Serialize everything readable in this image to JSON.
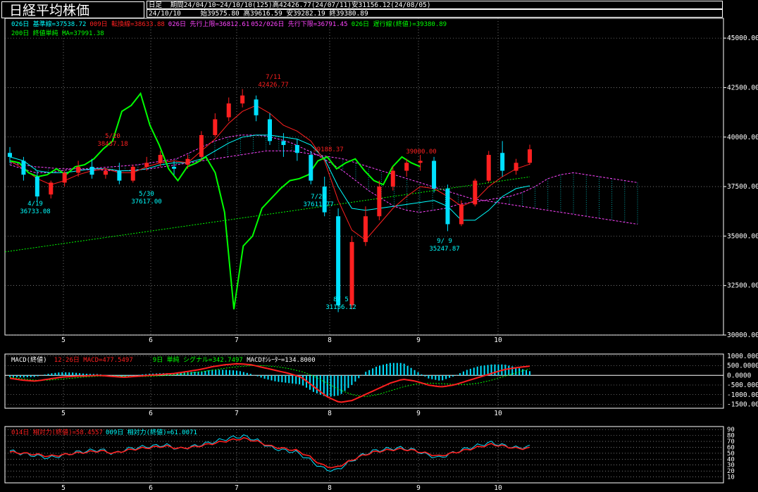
{
  "header": {
    "title": "日経平均株価",
    "chart_type_label": "日足",
    "period_line": "期間24/04/10~24/10/10(125)高42426.77(24/07/11)安31156.12(24/08/05)",
    "date": "24/10/10",
    "ohlc_line": "始39575.80 高39616.59 安39282.19 終39380.89"
  },
  "legends": {
    "ichimoku_1": [
      {
        "text": "026日 基準線=37538.72",
        "color": "#00ffff"
      },
      {
        "text": "009日 転換線=38633.88",
        "color": "#ff2020"
      },
      {
        "text": "026日 先行上限=36812.61",
        "color": "#ff44ff"
      },
      {
        "text": "052/026日 先行下限=36791.45",
        "color": "#ff44ff"
      },
      {
        "text": "026日 遅行線(終値)=39380.89",
        "color": "#00ff00"
      }
    ],
    "ichimoku_2": [
      {
        "text": "200日 終値単純 MA=37991.38",
        "color": "#00ff00"
      }
    ],
    "macd": [
      {
        "text": "MACD(終値)",
        "color": "#ffffff"
      },
      {
        "text": "12-26日 MACD=477.5497",
        "color": "#ff2020"
      },
      {
        "text": "9日 単純 シグナル=342.7497",
        "color": "#00ff00"
      },
      {
        "text": "MACDｵｼﾚｰﾀｰ=134.8000",
        "color": "#ffffff"
      }
    ],
    "rsi": [
      {
        "text": "014日 相対力(終値)=58.4557",
        "color": "#ff2020"
      },
      {
        "text": "009日 相対力(終値)=61.0071",
        "color": "#00ffff"
      }
    ]
  },
  "annotations": [
    {
      "lines": [
        "4/19",
        "36733.08"
      ],
      "color": "#00ffff"
    },
    {
      "lines": [
        "5/20",
        "38437.18"
      ],
      "color": "#ff2020"
    },
    {
      "lines": [
        "5/30",
        "37617.00"
      ],
      "color": "#00ffff"
    },
    {
      "lines": [
        "7/11",
        "42426.77"
      ],
      "color": "#ff2020"
    },
    {
      "lines": [
        "39188.37"
      ],
      "color": "#ff2020"
    },
    {
      "lines": [
        "7/26",
        "37611.77"
      ],
      "color": "#00ffff"
    },
    {
      "lines": [
        "8/ 5",
        "31156.12"
      ],
      "color": "#00ffff"
    },
    {
      "lines": [
        "39000.00"
      ],
      "color": "#ff2020"
    },
    {
      "lines": [
        "9/ 9",
        "35247.87"
      ],
      "color": "#00ffff"
    }
  ],
  "chart_data": [
    {
      "type": "candlestick",
      "panel": "price",
      "ylim": [
        30000,
        46000
      ],
      "yticks": [
        "45000.00",
        "42500.00",
        "40000.00",
        "37500.00",
        "35000.00",
        "32500.00",
        "30000.00"
      ],
      "xticks": [
        "5",
        "6",
        "7",
        "8",
        "9",
        "10"
      ],
      "ohlc_sampled": [
        [
          39200,
          39500,
          38700,
          39000
        ],
        [
          38800,
          39000,
          37800,
          38100
        ],
        [
          38000,
          38300,
          36733,
          37000
        ],
        [
          37100,
          37800,
          36900,
          37700
        ],
        [
          37700,
          38300,
          37500,
          38200
        ],
        [
          38200,
          38800,
          38000,
          38500
        ],
        [
          38500,
          38900,
          37900,
          38100
        ],
        [
          38100,
          38437,
          37900,
          38300
        ],
        [
          38300,
          38700,
          37617,
          37800
        ],
        [
          37800,
          38600,
          37700,
          38500
        ],
        [
          38500,
          39000,
          38300,
          38700
        ],
        [
          38700,
          39300,
          38500,
          39100
        ],
        [
          38500,
          38800,
          38100,
          38400
        ],
        [
          38600,
          39100,
          38400,
          38900
        ],
        [
          39000,
          40300,
          38800,
          40100
        ],
        [
          40100,
          41200,
          40000,
          40900
        ],
        [
          41000,
          42000,
          40800,
          41700
        ],
        [
          41700,
          42426,
          41500,
          42100
        ],
        [
          41900,
          42100,
          40800,
          41100
        ],
        [
          40900,
          41200,
          39600,
          39800
        ],
        [
          39800,
          40200,
          39000,
          39600
        ],
        [
          39600,
          39900,
          38800,
          39200
        ],
        [
          39100,
          39300,
          37611,
          37800
        ],
        [
          37500,
          38000,
          36000,
          36200
        ],
        [
          36000,
          36400,
          31156,
          31500
        ],
        [
          31500,
          35000,
          31300,
          34700
        ],
        [
          34700,
          36500,
          34500,
          36000
        ],
        [
          36000,
          37800,
          35800,
          37500
        ],
        [
          37500,
          38500,
          37300,
          38300
        ],
        [
          38300,
          38900,
          38000,
          38700
        ],
        [
          38700,
          39100,
          38300,
          38800
        ],
        [
          38800,
          39000,
          37200,
          37400
        ],
        [
          37400,
          37600,
          35247,
          35600
        ],
        [
          35600,
          36800,
          35500,
          36600
        ],
        [
          36600,
          37900,
          36500,
          37800
        ],
        [
          37800,
          39300,
          37700,
          39100
        ],
        [
          39200,
          39800,
          38000,
          38300
        ],
        [
          38300,
          38900,
          38100,
          38700
        ],
        [
          38700,
          39616,
          38600,
          39380
        ]
      ],
      "series": [
        {
          "name": "026日 基準線",
          "last": 37538.72,
          "color": "#00ffff"
        },
        {
          "name": "009日 転換線",
          "last": 38633.88,
          "color": "#ff2020"
        },
        {
          "name": "026日 先行上限",
          "last": 36812.61,
          "color": "#ff44ff"
        },
        {
          "name": "052/026日 先行下限",
          "last": 36791.45,
          "color": "#ff44ff"
        },
        {
          "name": "026日 遅行線(終値)",
          "last": 39380.89,
          "color": "#00ff00"
        },
        {
          "name": "200日 終値単純 MA",
          "last": 37991.38,
          "color": "#00ff00"
        }
      ]
    },
    {
      "type": "bar",
      "panel": "macd",
      "ylim": [
        -1700,
        1100
      ],
      "yticks": [
        "1000.000",
        "500.0000",
        "0.0000",
        "-500.000",
        "-1000.00",
        "-1500.00"
      ],
      "xticks": [
        "5",
        "6",
        "7",
        "8",
        "9",
        "10"
      ],
      "macd_sampled": [
        -150,
        -250,
        -300,
        -200,
        -100,
        -50,
        -30,
        0,
        -50,
        -100,
        -50,
        0,
        50,
        100,
        200,
        300,
        450,
        550,
        600,
        550,
        400,
        250,
        100,
        -100,
        -600,
        -1100,
        -1400,
        -1300,
        -1000,
        -700,
        -400,
        -200,
        -300,
        -500,
        -600,
        -500,
        -300,
        -100,
        100,
        300,
        400,
        477
      ],
      "signal_sampled": [
        -100,
        -180,
        -250,
        -250,
        -200,
        -140,
        -80,
        -40,
        -30,
        -50,
        -60,
        -50,
        -20,
        30,
        100,
        180,
        270,
        370,
        450,
        500,
        500,
        450,
        350,
        200,
        -50,
        -400,
        -750,
        -1000,
        -1100,
        -1000,
        -800,
        -600,
        -450,
        -400,
        -420,
        -470,
        -470,
        -400,
        -250,
        -50,
        150,
        342
      ]
    },
    {
      "type": "line",
      "panel": "rsi",
      "ylim": [
        0,
        95
      ],
      "yticks": [
        "90",
        "80",
        "70",
        "60",
        "50",
        "40",
        "30",
        "20",
        "10"
      ],
      "xticks": [
        "5",
        "6",
        "7",
        "8",
        "9",
        "10"
      ],
      "rsi14_sampled": [
        52,
        50,
        48,
        45,
        47,
        50,
        52,
        54,
        50,
        55,
        58,
        60,
        62,
        58,
        60,
        64,
        68,
        72,
        75,
        70,
        62,
        58,
        55,
        45,
        30,
        25,
        35,
        45,
        52,
        55,
        57,
        55,
        50,
        45,
        50,
        55,
        60,
        65,
        62,
        58,
        58.46
      ],
      "rsi9_sampled": [
        54,
        49,
        46,
        42,
        46,
        51,
        54,
        56,
        49,
        57,
        60,
        62,
        64,
        57,
        61,
        66,
        71,
        76,
        79,
        72,
        60,
        55,
        52,
        40,
        25,
        20,
        33,
        46,
        54,
        57,
        59,
        56,
        48,
        42,
        50,
        57,
        63,
        68,
        63,
        59,
        61.01
      ]
    }
  ]
}
